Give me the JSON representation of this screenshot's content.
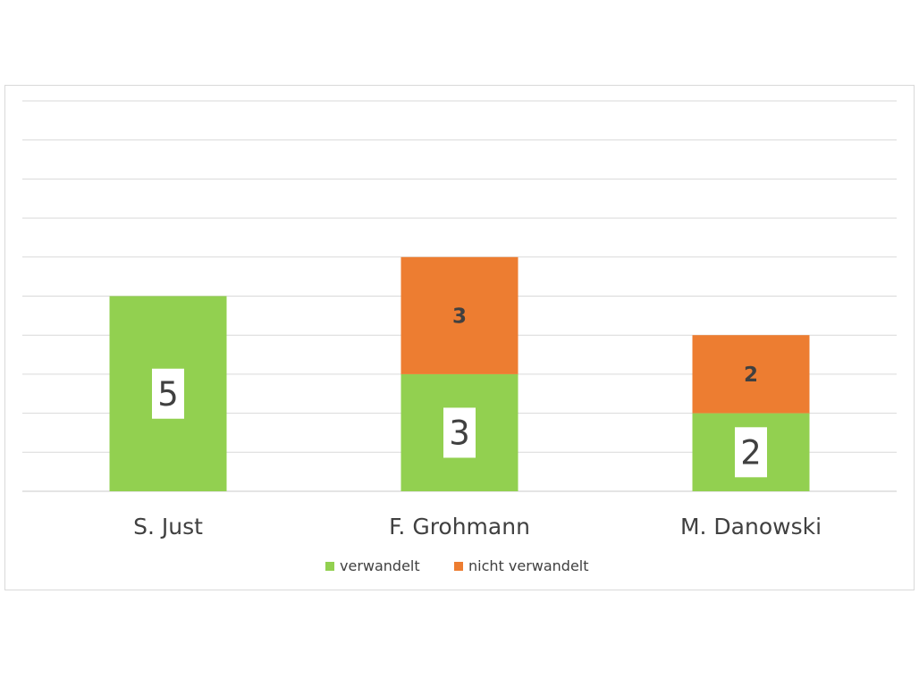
{
  "chart_data": {
    "type": "bar",
    "stacked": true,
    "categories": [
      "S. Just",
      "F. Grohmann",
      "M. Danowski"
    ],
    "series": [
      {
        "name": "verwandelt",
        "color": "#92d050",
        "values": [
          5,
          3,
          2
        ]
      },
      {
        "name": "nicht verwandelt",
        "color": "#ed7d31",
        "values": [
          0,
          3,
          2
        ]
      }
    ],
    "ylim": [
      0,
      10
    ],
    "grid": true,
    "legend_position": "bottom",
    "data_labels": [
      [
        "5",
        "3",
        "2"
      ],
      [
        "",
        "3",
        "2"
      ]
    ]
  }
}
